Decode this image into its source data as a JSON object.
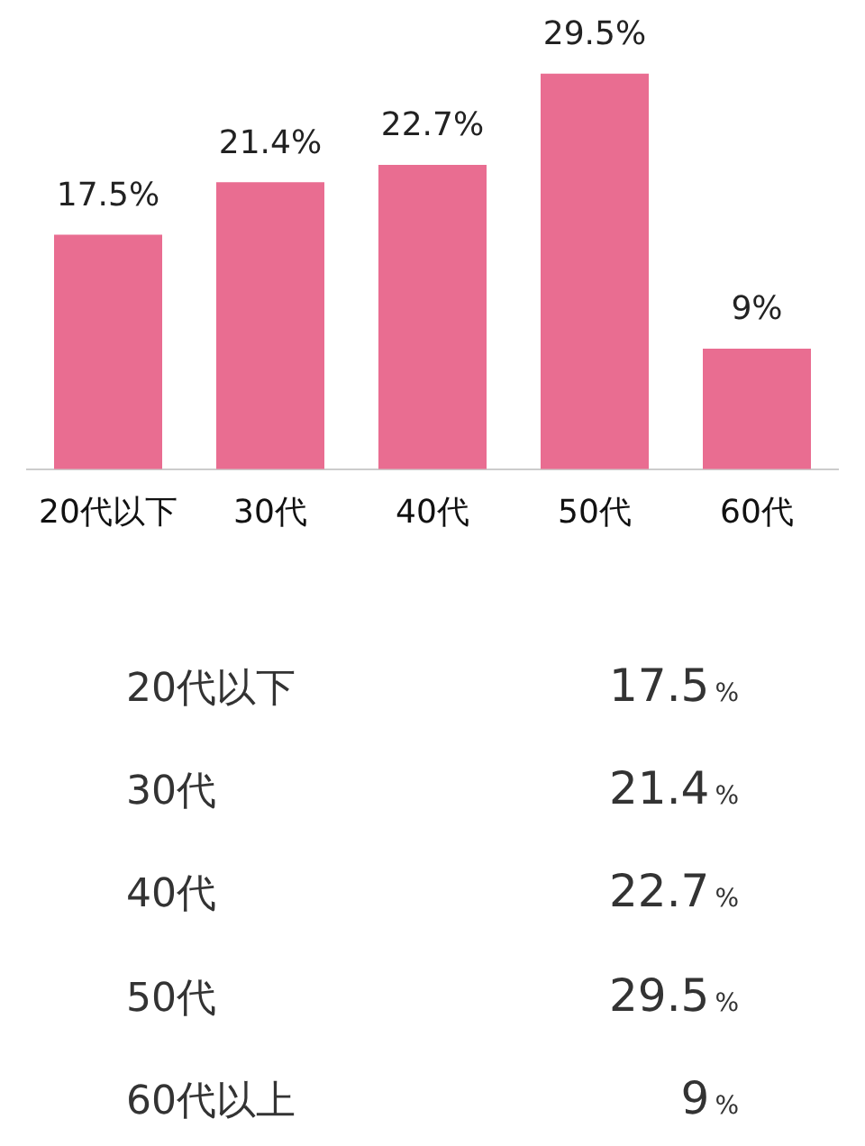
{
  "chart_data": {
    "type": "bar",
    "categories": [
      "20代以下",
      "30代",
      "40代",
      "50代",
      "60代"
    ],
    "values": [
      17.5,
      21.4,
      22.7,
      29.5,
      9
    ],
    "color": "#e96d91",
    "value_labels": [
      "17.5%",
      "21.4%",
      "22.7%",
      "29.5%",
      "9%"
    ],
    "grid": false,
    "legend": false,
    "tick_labels": "x",
    "annotations": [
      "20代以下",
      "17.5%",
      "30代",
      "21.4%",
      "40代",
      "22.7%",
      "50代",
      "29.5%",
      "60代以上",
      "9%"
    ]
  }
}
